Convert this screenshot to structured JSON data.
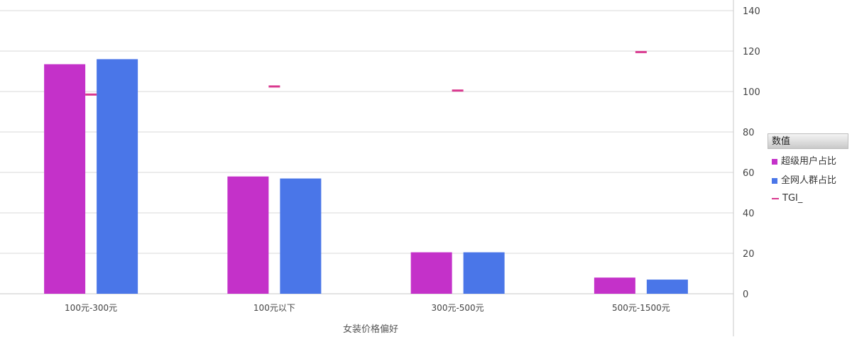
{
  "chart_data": {
    "type": "bar",
    "categories": [
      "100元-300元",
      "100元以下",
      "300元-500元",
      "500元-1500元"
    ],
    "series": [
      {
        "name": "超级用户占比",
        "values": [
          113.5,
          58,
          20.5,
          8
        ],
        "color": "#c431c9",
        "kind": "bar"
      },
      {
        "name": "全网人群占比",
        "values": [
          116,
          57,
          20.5,
          7
        ],
        "color": "#4a76e8",
        "kind": "bar"
      },
      {
        "name": "TGI_",
        "values": [
          98.5,
          102.5,
          100.5,
          119.5
        ],
        "color": "#d9398f",
        "kind": "marker"
      }
    ],
    "xlabel": "女装价格偏好",
    "ylabel": "",
    "ylim": [
      0,
      140
    ],
    "yticks": [
      "0",
      "20",
      "40",
      "60",
      "80",
      "100",
      "120",
      "140"
    ],
    "y_axis_side": "right",
    "grid": true,
    "legend": {
      "title": "数值",
      "placement": "right"
    }
  }
}
